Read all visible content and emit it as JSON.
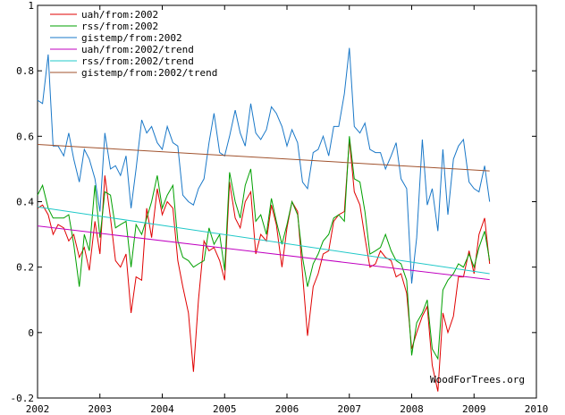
{
  "chart_data": {
    "type": "line",
    "title": "",
    "xlabel": "",
    "ylabel": "",
    "xlim": [
      2002,
      2010
    ],
    "ylim": [
      -0.2,
      1
    ],
    "x_ticks": [
      2002,
      2003,
      2004,
      2005,
      2006,
      2007,
      2008,
      2009,
      2010
    ],
    "x_tick_labels": [
      "2002",
      "2003",
      "2004",
      "2005",
      "2006",
      "2007",
      "2008",
      "2009",
      "2010"
    ],
    "y_ticks": [
      -0.2,
      0,
      0.2,
      0.4,
      0.6,
      0.8,
      1
    ],
    "y_tick_labels": [
      "-0.2",
      "0",
      "0.2",
      "0.4",
      "0.6",
      "0.8",
      "1"
    ],
    "grid": false,
    "legend_position": "top-left",
    "watermark": "WoodForTrees.org",
    "series": [
      {
        "name": "uah/from:2002",
        "color": "#e00000",
        "values": [
          [
            2002.0,
            0.38
          ],
          [
            2002.08,
            0.39
          ],
          [
            2002.17,
            0.36
          ],
          [
            2002.25,
            0.3
          ],
          [
            2002.33,
            0.33
          ],
          [
            2002.42,
            0.32
          ],
          [
            2002.5,
            0.28
          ],
          [
            2002.58,
            0.3
          ],
          [
            2002.67,
            0.23
          ],
          [
            2002.75,
            0.26
          ],
          [
            2002.83,
            0.19
          ],
          [
            2002.92,
            0.34
          ],
          [
            2003.0,
            0.24
          ],
          [
            2003.08,
            0.48
          ],
          [
            2003.17,
            0.35
          ],
          [
            2003.25,
            0.22
          ],
          [
            2003.33,
            0.2
          ],
          [
            2003.42,
            0.24
          ],
          [
            2003.5,
            0.06
          ],
          [
            2003.58,
            0.17
          ],
          [
            2003.67,
            0.16
          ],
          [
            2003.75,
            0.38
          ],
          [
            2003.83,
            0.29
          ],
          [
            2003.92,
            0.44
          ],
          [
            2004.0,
            0.36
          ],
          [
            2004.08,
            0.4
          ],
          [
            2004.17,
            0.38
          ],
          [
            2004.25,
            0.22
          ],
          [
            2004.33,
            0.14
          ],
          [
            2004.42,
            0.06
          ],
          [
            2004.5,
            -0.12
          ],
          [
            2004.58,
            0.1
          ],
          [
            2004.67,
            0.28
          ],
          [
            2004.75,
            0.25
          ],
          [
            2004.83,
            0.26
          ],
          [
            2004.92,
            0.22
          ],
          [
            2005.0,
            0.16
          ],
          [
            2005.08,
            0.46
          ],
          [
            2005.17,
            0.35
          ],
          [
            2005.25,
            0.32
          ],
          [
            2005.33,
            0.4
          ],
          [
            2005.42,
            0.43
          ],
          [
            2005.5,
            0.24
          ],
          [
            2005.58,
            0.3
          ],
          [
            2005.67,
            0.28
          ],
          [
            2005.75,
            0.39
          ],
          [
            2005.83,
            0.33
          ],
          [
            2005.92,
            0.2
          ],
          [
            2006.0,
            0.32
          ],
          [
            2006.08,
            0.4
          ],
          [
            2006.17,
            0.37
          ],
          [
            2006.25,
            0.18
          ],
          [
            2006.33,
            -0.01
          ],
          [
            2006.42,
            0.14
          ],
          [
            2006.5,
            0.18
          ],
          [
            2006.58,
            0.24
          ],
          [
            2006.67,
            0.25
          ],
          [
            2006.75,
            0.34
          ],
          [
            2006.83,
            0.36
          ],
          [
            2006.92,
            0.37
          ],
          [
            2007.0,
            0.59
          ],
          [
            2007.08,
            0.43
          ],
          [
            2007.17,
            0.39
          ],
          [
            2007.25,
            0.29
          ],
          [
            2007.33,
            0.2
          ],
          [
            2007.42,
            0.21
          ],
          [
            2007.5,
            0.25
          ],
          [
            2007.58,
            0.23
          ],
          [
            2007.67,
            0.22
          ],
          [
            2007.75,
            0.17
          ],
          [
            2007.83,
            0.18
          ],
          [
            2007.92,
            0.12
          ],
          [
            2008.0,
            -0.05
          ],
          [
            2008.08,
            0.0
          ],
          [
            2008.17,
            0.05
          ],
          [
            2008.25,
            0.08
          ],
          [
            2008.33,
            -0.1
          ],
          [
            2008.42,
            -0.18
          ],
          [
            2008.5,
            0.06
          ],
          [
            2008.58,
            0.0
          ],
          [
            2008.67,
            0.05
          ],
          [
            2008.75,
            0.17
          ],
          [
            2008.83,
            0.17
          ],
          [
            2008.92,
            0.25
          ],
          [
            2009.0,
            0.18
          ],
          [
            2009.08,
            0.3
          ],
          [
            2009.17,
            0.35
          ],
          [
            2009.25,
            0.21
          ]
        ]
      },
      {
        "name": "rss/from:2002",
        "color": "#00a000",
        "values": [
          [
            2002.0,
            0.42
          ],
          [
            2002.08,
            0.45
          ],
          [
            2002.17,
            0.38
          ],
          [
            2002.25,
            0.35
          ],
          [
            2002.33,
            0.35
          ],
          [
            2002.42,
            0.35
          ],
          [
            2002.5,
            0.36
          ],
          [
            2002.58,
            0.27
          ],
          [
            2002.67,
            0.14
          ],
          [
            2002.75,
            0.3
          ],
          [
            2002.83,
            0.25
          ],
          [
            2002.92,
            0.45
          ],
          [
            2003.0,
            0.29
          ],
          [
            2003.08,
            0.43
          ],
          [
            2003.17,
            0.42
          ],
          [
            2003.25,
            0.32
          ],
          [
            2003.33,
            0.33
          ],
          [
            2003.42,
            0.34
          ],
          [
            2003.5,
            0.2
          ],
          [
            2003.58,
            0.33
          ],
          [
            2003.67,
            0.3
          ],
          [
            2003.75,
            0.35
          ],
          [
            2003.83,
            0.4
          ],
          [
            2003.92,
            0.48
          ],
          [
            2004.0,
            0.38
          ],
          [
            2004.08,
            0.42
          ],
          [
            2004.17,
            0.45
          ],
          [
            2004.25,
            0.28
          ],
          [
            2004.33,
            0.23
          ],
          [
            2004.42,
            0.22
          ],
          [
            2004.5,
            0.2
          ],
          [
            2004.58,
            0.21
          ],
          [
            2004.67,
            0.22
          ],
          [
            2004.75,
            0.32
          ],
          [
            2004.83,
            0.27
          ],
          [
            2004.92,
            0.3
          ],
          [
            2005.0,
            0.19
          ],
          [
            2005.08,
            0.49
          ],
          [
            2005.17,
            0.4
          ],
          [
            2005.25,
            0.35
          ],
          [
            2005.33,
            0.45
          ],
          [
            2005.42,
            0.5
          ],
          [
            2005.5,
            0.34
          ],
          [
            2005.58,
            0.36
          ],
          [
            2005.67,
            0.3
          ],
          [
            2005.75,
            0.41
          ],
          [
            2005.83,
            0.34
          ],
          [
            2005.92,
            0.27
          ],
          [
            2006.0,
            0.33
          ],
          [
            2006.08,
            0.4
          ],
          [
            2006.17,
            0.36
          ],
          [
            2006.25,
            0.23
          ],
          [
            2006.33,
            0.14
          ],
          [
            2006.42,
            0.21
          ],
          [
            2006.5,
            0.24
          ],
          [
            2006.58,
            0.28
          ],
          [
            2006.67,
            0.3
          ],
          [
            2006.75,
            0.35
          ],
          [
            2006.83,
            0.36
          ],
          [
            2006.92,
            0.34
          ],
          [
            2007.0,
            0.6
          ],
          [
            2007.08,
            0.47
          ],
          [
            2007.17,
            0.46
          ],
          [
            2007.25,
            0.37
          ],
          [
            2007.33,
            0.24
          ],
          [
            2007.42,
            0.25
          ],
          [
            2007.5,
            0.26
          ],
          [
            2007.58,
            0.3
          ],
          [
            2007.67,
            0.25
          ],
          [
            2007.75,
            0.22
          ],
          [
            2007.83,
            0.21
          ],
          [
            2007.92,
            0.16
          ],
          [
            2008.0,
            -0.07
          ],
          [
            2008.08,
            0.03
          ],
          [
            2008.17,
            0.06
          ],
          [
            2008.25,
            0.1
          ],
          [
            2008.33,
            -0.05
          ],
          [
            2008.42,
            -0.08
          ],
          [
            2008.5,
            0.13
          ],
          [
            2008.58,
            0.16
          ],
          [
            2008.67,
            0.18
          ],
          [
            2008.75,
            0.21
          ],
          [
            2008.83,
            0.2
          ],
          [
            2008.92,
            0.24
          ],
          [
            2009.0,
            0.2
          ],
          [
            2009.08,
            0.26
          ],
          [
            2009.17,
            0.31
          ],
          [
            2009.25,
            0.22
          ]
        ]
      },
      {
        "name": "gistemp/from:2002",
        "color": "#1a78c8",
        "values": [
          [
            2002.0,
            0.71
          ],
          [
            2002.08,
            0.7
          ],
          [
            2002.17,
            0.85
          ],
          [
            2002.25,
            0.57
          ],
          [
            2002.33,
            0.57
          ],
          [
            2002.42,
            0.54
          ],
          [
            2002.5,
            0.61
          ],
          [
            2002.58,
            0.53
          ],
          [
            2002.67,
            0.46
          ],
          [
            2002.75,
            0.56
          ],
          [
            2002.83,
            0.53
          ],
          [
            2002.92,
            0.47
          ],
          [
            2003.0,
            0.37
          ],
          [
            2003.08,
            0.61
          ],
          [
            2003.17,
            0.5
          ],
          [
            2003.25,
            0.51
          ],
          [
            2003.33,
            0.48
          ],
          [
            2003.42,
            0.54
          ],
          [
            2003.5,
            0.38
          ],
          [
            2003.58,
            0.5
          ],
          [
            2003.67,
            0.65
          ],
          [
            2003.75,
            0.61
          ],
          [
            2003.83,
            0.63
          ],
          [
            2003.92,
            0.58
          ],
          [
            2004.0,
            0.56
          ],
          [
            2004.08,
            0.63
          ],
          [
            2004.17,
            0.58
          ],
          [
            2004.25,
            0.57
          ],
          [
            2004.33,
            0.42
          ],
          [
            2004.42,
            0.4
          ],
          [
            2004.5,
            0.39
          ],
          [
            2004.58,
            0.44
          ],
          [
            2004.67,
            0.47
          ],
          [
            2004.75,
            0.58
          ],
          [
            2004.83,
            0.67
          ],
          [
            2004.92,
            0.55
          ],
          [
            2005.0,
            0.54
          ],
          [
            2005.08,
            0.6
          ],
          [
            2005.17,
            0.68
          ],
          [
            2005.25,
            0.61
          ],
          [
            2005.33,
            0.57
          ],
          [
            2005.42,
            0.7
          ],
          [
            2005.5,
            0.61
          ],
          [
            2005.58,
            0.59
          ],
          [
            2005.67,
            0.62
          ],
          [
            2005.75,
            0.69
          ],
          [
            2005.83,
            0.67
          ],
          [
            2005.92,
            0.63
          ],
          [
            2006.0,
            0.57
          ],
          [
            2006.08,
            0.62
          ],
          [
            2006.17,
            0.58
          ],
          [
            2006.25,
            0.46
          ],
          [
            2006.33,
            0.44
          ],
          [
            2006.42,
            0.55
          ],
          [
            2006.5,
            0.56
          ],
          [
            2006.58,
            0.6
          ],
          [
            2006.67,
            0.54
          ],
          [
            2006.75,
            0.63
          ],
          [
            2006.83,
            0.63
          ],
          [
            2006.92,
            0.73
          ],
          [
            2007.0,
            0.87
          ],
          [
            2007.08,
            0.63
          ],
          [
            2007.17,
            0.61
          ],
          [
            2007.25,
            0.64
          ],
          [
            2007.33,
            0.56
          ],
          [
            2007.42,
            0.55
          ],
          [
            2007.5,
            0.55
          ],
          [
            2007.58,
            0.5
          ],
          [
            2007.67,
            0.54
          ],
          [
            2007.75,
            0.58
          ],
          [
            2007.83,
            0.47
          ],
          [
            2007.92,
            0.44
          ],
          [
            2008.0,
            0.15
          ],
          [
            2008.08,
            0.29
          ],
          [
            2008.17,
            0.59
          ],
          [
            2008.25,
            0.39
          ],
          [
            2008.33,
            0.44
          ],
          [
            2008.42,
            0.31
          ],
          [
            2008.5,
            0.56
          ],
          [
            2008.58,
            0.36
          ],
          [
            2008.67,
            0.53
          ],
          [
            2008.75,
            0.57
          ],
          [
            2008.83,
            0.59
          ],
          [
            2008.92,
            0.46
          ],
          [
            2009.0,
            0.44
          ],
          [
            2009.08,
            0.43
          ],
          [
            2009.17,
            0.51
          ],
          [
            2009.25,
            0.4
          ]
        ]
      },
      {
        "name": "uah/from:2002/trend",
        "color": "#c000c0",
        "values": [
          [
            2002.0,
            0.326
          ],
          [
            2009.25,
            0.162
          ]
        ]
      },
      {
        "name": "rss/from:2002/trend",
        "color": "#20c8c8",
        "values": [
          [
            2002.0,
            0.384
          ],
          [
            2009.25,
            0.18
          ]
        ]
      },
      {
        "name": "gistemp/from:2002/trend",
        "color": "#a0522d",
        "values": [
          [
            2002.0,
            0.575
          ],
          [
            2009.25,
            0.494
          ]
        ]
      }
    ]
  }
}
